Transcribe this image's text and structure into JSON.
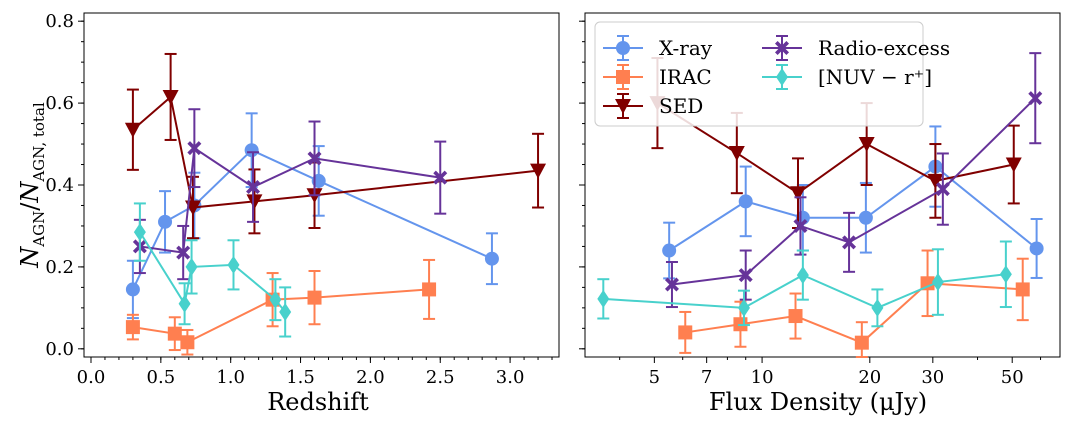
{
  "colors": {
    "X-ray": "#6495ed",
    "IRAC": "#ff7f50",
    "SED": "#800000",
    "Radio-excess": "#663399",
    "NUV": "#48d1cc"
  },
  "chart_data": [
    {
      "type": "scatter",
      "panel": "left",
      "xlabel": "Redshift",
      "ylabel": "N_AGN / N_AGN,total",
      "xlim": [
        -0.05,
        3.35
      ],
      "ylim": [
        -0.02,
        0.82
      ],
      "xscale": "linear",
      "xticks": [
        0.0,
        0.5,
        1.0,
        1.5,
        2.0,
        2.5,
        3.0
      ],
      "xtick_labels": [
        "0.0",
        "0.5",
        "1.0",
        "1.5",
        "2.0",
        "2.5",
        "3.0"
      ],
      "yticks": [
        0.0,
        0.2,
        0.4,
        0.6,
        0.8
      ],
      "ytick_labels": [
        "0.0",
        "0.2",
        "0.4",
        "0.6",
        "0.8"
      ],
      "series": [
        {
          "name": "X-ray",
          "marker": "circle",
          "x": [
            0.3,
            0.53,
            0.74,
            1.15,
            1.63,
            2.87
          ],
          "y": [
            0.145,
            0.31,
            0.35,
            0.485,
            0.41,
            0.22
          ],
          "err": [
            0.07,
            0.075,
            0.08,
            0.09,
            0.085,
            0.062
          ]
        },
        {
          "name": "IRAC",
          "marker": "square",
          "x": [
            0.3,
            0.6,
            0.69,
            1.3,
            1.6,
            2.42
          ],
          "y": [
            0.053,
            0.037,
            0.016,
            0.12,
            0.125,
            0.145
          ],
          "err": [
            0.03,
            0.04,
            0.03,
            0.065,
            0.065,
            0.072
          ]
        },
        {
          "name": "SED",
          "marker": "triangle-down",
          "x": [
            0.3,
            0.57,
            0.73,
            1.17,
            1.6,
            3.2
          ],
          "y": [
            0.535,
            0.615,
            0.345,
            0.36,
            0.375,
            0.435
          ],
          "err": [
            0.098,
            0.105,
            0.075,
            0.078,
            0.08,
            0.09
          ]
        },
        {
          "name": "Radio-excess",
          "marker": "x",
          "x": [
            0.35,
            0.66,
            0.74,
            1.16,
            1.6,
            2.5
          ],
          "y": [
            0.25,
            0.235,
            0.49,
            0.395,
            0.465,
            0.418
          ],
          "err": [
            0.065,
            0.065,
            0.095,
            0.085,
            0.09,
            0.088
          ]
        },
        {
          "name": "[NUV − r⁺]",
          "marker": "diamond",
          "x": [
            0.35,
            0.67,
            0.72,
            1.02,
            1.32,
            1.39
          ],
          "y": [
            0.285,
            0.11,
            0.2,
            0.205,
            0.12,
            0.09
          ],
          "err": [
            0.07,
            0.05,
            0.065,
            0.06,
            0.05,
            0.06
          ]
        }
      ]
    },
    {
      "type": "scatter",
      "panel": "right",
      "xlabel": "Flux Density (μJy)",
      "xlim": [
        3.2,
        68
      ],
      "ylim": [
        -0.02,
        0.82
      ],
      "xscale": "log",
      "xticks": [
        5,
        7,
        10,
        20,
        30,
        50
      ],
      "xtick_labels": [
        "5",
        "7",
        "10",
        "20",
        "30",
        "50"
      ],
      "yticks": [
        0.0,
        0.2,
        0.4,
        0.6,
        0.8
      ],
      "series": [
        {
          "name": "X-ray",
          "marker": "circle",
          "x": [
            5.5,
            9.0,
            13.0,
            19.5,
            30.5,
            58.5
          ],
          "y": [
            0.24,
            0.36,
            0.32,
            0.32,
            0.445,
            0.245
          ],
          "err": [
            0.068,
            0.085,
            0.08,
            0.085,
            0.098,
            0.072
          ]
        },
        {
          "name": "IRAC",
          "marker": "square",
          "x": [
            6.1,
            8.7,
            12.4,
            19.0,
            29.0,
            53.5
          ],
          "y": [
            0.04,
            0.06,
            0.08,
            0.015,
            0.16,
            0.145
          ],
          "err": [
            0.05,
            0.055,
            0.055,
            0.05,
            0.08,
            0.075
          ]
        },
        {
          "name": "SED",
          "marker": "triangle-down",
          "x": [
            5.1,
            8.5,
            12.6,
            19.6,
            30.5,
            50.5
          ],
          "y": [
            0.6,
            0.478,
            0.38,
            0.5,
            0.41,
            0.45
          ],
          "err": [
            0.11,
            0.098,
            0.085,
            0.1,
            0.09,
            0.095
          ]
        },
        {
          "name": "Radio-excess",
          "marker": "x",
          "x": [
            5.6,
            9.0,
            12.8,
            17.5,
            32.0,
            58.0
          ],
          "y": [
            0.157,
            0.18,
            0.3,
            0.26,
            0.39,
            0.612
          ],
          "err": [
            0.055,
            0.06,
            0.07,
            0.072,
            0.087,
            0.11
          ]
        },
        {
          "name": "[NUV − r⁺]",
          "marker": "diamond",
          "x": [
            3.6,
            8.9,
            13.0,
            21.0,
            31.0,
            48.0
          ],
          "y": [
            0.122,
            0.1,
            0.18,
            0.1,
            0.163,
            0.182
          ],
          "err": [
            0.048,
            0.042,
            0.06,
            0.045,
            0.08,
            0.08
          ]
        }
      ],
      "legend": {
        "placement": "top-left",
        "entries": [
          "X-ray",
          "IRAC",
          "SED",
          "Radio-excess",
          "[NUV − r⁺]"
        ]
      }
    }
  ]
}
